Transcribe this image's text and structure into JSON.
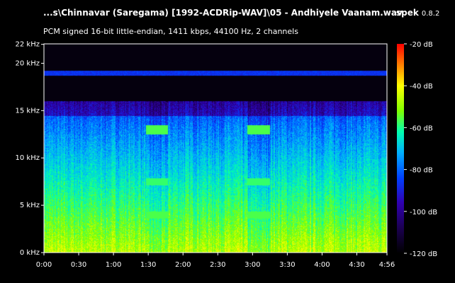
{
  "window": {
    "file_title": "...s\\Chinnavar (Saregama) [1992-ACDRip-WAV]\\05 - Andhiyele Vaanam.wav",
    "app_name": "spek",
    "app_version": "0.8.2",
    "info": "PCM signed 16-bit little-endian, 1411 kbps, 44100 Hz, 2 channels"
  },
  "colors": {
    "background": "#000000",
    "text": "#ffffff",
    "axis": "#ffffff",
    "palette": [
      "#000000",
      "#1b0050",
      "#3000b0",
      "#0040ff",
      "#00b0ff",
      "#00ffb0",
      "#80ff00",
      "#ffff00",
      "#ff8000",
      "#ff0000"
    ]
  },
  "spectrogram": {
    "freq_axis_label_unit": "kHz",
    "freq_ticks": [
      "0 kHz",
      "5 kHz",
      "10 kHz",
      "15 kHz",
      "20 kHz",
      "22 kHz"
    ],
    "freq_values_khz": [
      0,
      5,
      10,
      15,
      20,
      22
    ],
    "time_ticks": [
      "0:00",
      "0:30",
      "1:00",
      "1:30",
      "2:00",
      "2:30",
      "3:00",
      "3:30",
      "4:00",
      "4:30",
      "4:56"
    ],
    "time_values_s": [
      0,
      30,
      60,
      90,
      120,
      150,
      180,
      210,
      240,
      270,
      296
    ],
    "db_ticks": [
      "-20 dB",
      "-40 dB",
      "-60 dB",
      "-80 dB",
      "-100 dB",
      "-120 dB"
    ],
    "db_values": [
      -20,
      -40,
      -60,
      -80,
      -100,
      -120
    ],
    "duration_s": 296,
    "max_freq_khz": 22.05,
    "cutoff_khz": 16,
    "noise_line_khz": 19
  }
}
